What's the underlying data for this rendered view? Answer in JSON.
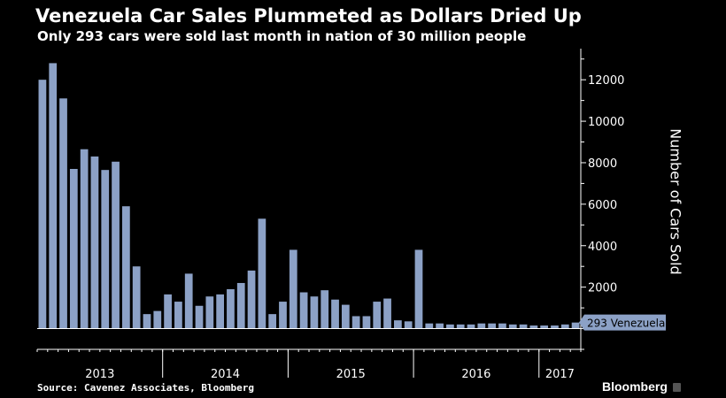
{
  "title": "Venezuela Car Sales Plummeted as Dollars Dried Up",
  "subtitle": "Only 293 cars were sold last month in nation of 30 million people",
  "source": "Source: Cavenez Associates, Bloomberg",
  "brand": "Bloomberg",
  "colors": {
    "background": "#000000",
    "bar": "#8ca1c6",
    "axis": "#ffffff"
  },
  "chart_data": {
    "type": "bar",
    "title": "Venezuela Car Sales Plummeted as Dollars Dried Up",
    "subtitle": "Only 293 cars were sold last month in nation of 30 million people",
    "ylabel": "Number of Cars Sold",
    "ylim": [
      -1000,
      13500
    ],
    "yticks": [
      2000,
      4000,
      6000,
      8000,
      10000,
      12000
    ],
    "grid": false,
    "year_labels": [
      "2013",
      "2014",
      "2015",
      "2016",
      "2017"
    ],
    "year_month_counts": [
      12,
      12,
      12,
      12,
      4
    ],
    "values": [
      12000,
      12800,
      11100,
      7700,
      8650,
      8300,
      7650,
      8050,
      5900,
      3000,
      700,
      850,
      1650,
      1300,
      2650,
      1100,
      1550,
      1650,
      1900,
      2200,
      2800,
      5300,
      700,
      1300,
      3800,
      1750,
      1550,
      1850,
      1400,
      1150,
      600,
      600,
      1300,
      1450,
      400,
      350,
      3800,
      250,
      250,
      200,
      200,
      200,
      250,
      250,
      250,
      200,
      200,
      150,
      150,
      150,
      200,
      293
    ],
    "callout": {
      "value": 293,
      "label": "293 Venezuela"
    }
  }
}
